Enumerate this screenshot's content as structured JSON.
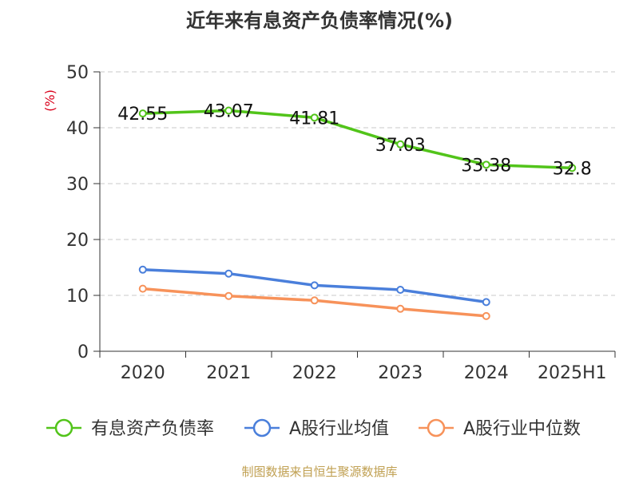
{
  "chart_data": {
    "type": "line",
    "title": "近年来有息资产负债率情况(%)",
    "ylabel": "(%)",
    "xlabel": "",
    "categories": [
      "2020",
      "2021",
      "2022",
      "2023",
      "2024",
      "2025H1"
    ],
    "yticks": [
      "0",
      "10",
      "20",
      "30",
      "40",
      "50"
    ],
    "ylim": [
      0,
      50
    ],
    "grid": true,
    "legend_position": "bottom",
    "series": [
      {
        "name": "有息资产负债率",
        "color": "#52c41a",
        "values": [
          42.55,
          43.07,
          41.81,
          37.03,
          33.38,
          32.8
        ],
        "labels": [
          "42.55",
          "43.07",
          "41.81",
          "37.03",
          "33.38",
          "32.8"
        ],
        "show_labels": true
      },
      {
        "name": "A股行业均值",
        "color": "#4a7fdb",
        "values": [
          14.6,
          13.9,
          11.8,
          11.0,
          8.8,
          null
        ],
        "show_labels": false
      },
      {
        "name": "A股行业中位数",
        "color": "#f7925a",
        "values": [
          11.2,
          9.9,
          9.1,
          7.6,
          6.3,
          null
        ],
        "show_labels": false
      }
    ],
    "source": "制图数据来自恒生聚源数据库",
    "unit_color": "#d9001b",
    "source_color": "#c0a052"
  }
}
